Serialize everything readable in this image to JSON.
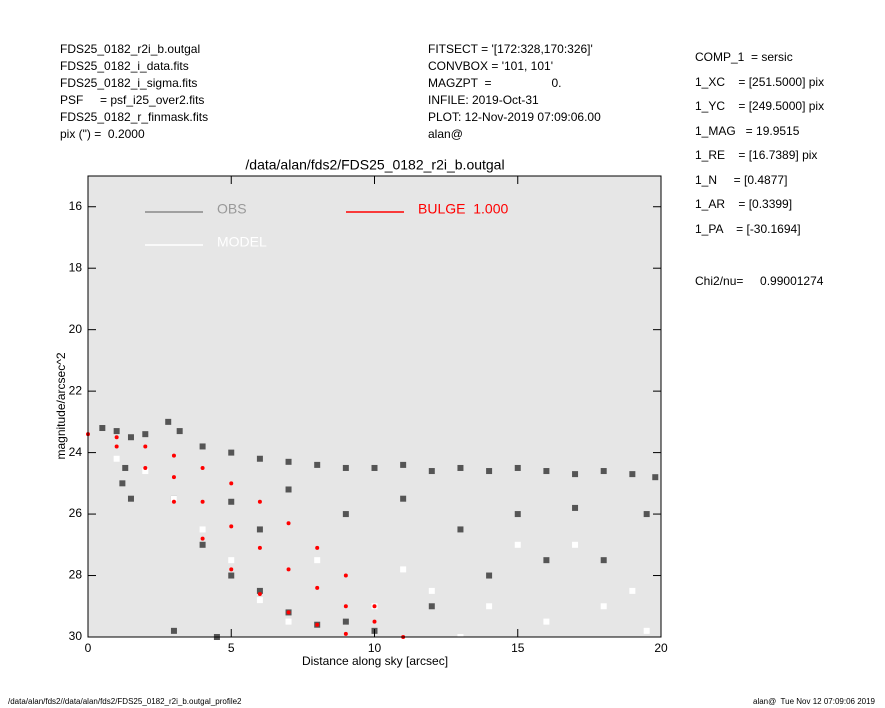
{
  "header": {
    "left": [
      "FDS25_0182_r2i_b.outgal",
      "FDS25_0182_i_data.fits",
      "FDS25_0182_i_sigma.fits",
      "PSF     = psf_i25_over2.fits",
      "FDS25_0182_r_finmask.fits",
      "pix (\") =  0.2000"
    ],
    "middle": [
      "FITSECT = '[172:328,170:326]'",
      "CONVBOX = '101, 101'",
      "MAGZPT  =                  0.",
      "INFILE: 2019-Oct-31",
      "PLOT: 12-Nov-2019 07:09:06.00",
      "alan@"
    ],
    "right": [
      "COMP_1  = sersic",
      "1_XC    = [251.5000] pix",
      "1_YC    = [249.5000] pix",
      "1_MAG   = 19.9515",
      "1_RE    = [16.7389] pix",
      "1_N     = [0.4877]",
      "1_AR    = [0.3399]",
      "1_PA    = [-30.1694]"
    ],
    "chi": "Chi2/nu=     0.99001274"
  },
  "footer": {
    "left": "/data/alan/fds2//data/alan/fds2/FDS25_0182_r2i_b.outgal_profile2",
    "right": "alan@  Tue Nov 12 07:09:06 2019"
  },
  "chart_data": {
    "type": "scatter",
    "title": "/data/alan/fds2/FDS25_0182_r2i_b.outgal",
    "x_label": "Distance along sky [arcsec]",
    "y_label": "magnitude/arcsec^2",
    "xlim": [
      0,
      20
    ],
    "xticks": [
      0,
      5,
      10,
      15,
      20
    ],
    "ylim": [
      30,
      15
    ],
    "yticks": [
      16,
      18,
      20,
      22,
      24,
      26,
      28,
      30
    ],
    "grid": false,
    "series": [
      {
        "name": "OBS",
        "color": "#555555",
        "x": [
          0.5,
          1,
          1.5,
          2,
          2.8,
          3.2,
          4,
          5,
          6,
          7,
          8,
          9,
          10,
          11,
          12,
          13,
          14,
          15,
          16,
          17,
          18,
          19,
          19.8,
          1.2,
          1.5,
          1.3,
          3,
          4,
          5,
          6,
          7,
          8,
          9,
          10,
          12,
          14,
          16,
          18,
          19.5,
          13,
          15,
          17,
          11,
          9,
          7,
          6,
          5,
          3,
          4.5
        ],
        "values": [
          23.2,
          23.3,
          23.5,
          23.4,
          23.0,
          23.3,
          23.8,
          24.0,
          24.2,
          24.3,
          24.4,
          24.5,
          24.5,
          24.4,
          24.6,
          24.5,
          24.6,
          24.5,
          24.6,
          24.7,
          24.6,
          24.7,
          24.8,
          25.0,
          25.5,
          24.5,
          25.5,
          27.0,
          28.0,
          28.5,
          29.2,
          29.6,
          29.5,
          29.8,
          29.0,
          28.0,
          27.5,
          27.5,
          26.0,
          26.5,
          26.0,
          25.8,
          25.5,
          26.0,
          25.2,
          26.5,
          25.6,
          29.8,
          30.0
        ]
      },
      {
        "name": "MODEL",
        "color": "#ffffff",
        "x": [
          1,
          2,
          3,
          4,
          5,
          6,
          7,
          10,
          12,
          14,
          15,
          16,
          18,
          19,
          19.5,
          13,
          17,
          8,
          11
        ],
        "values": [
          24.2,
          24.6,
          25.5,
          26.5,
          27.5,
          28.8,
          29.5,
          29.0,
          28.5,
          29.0,
          27.0,
          29.5,
          29.0,
          28.5,
          29.8,
          30.0,
          27.0,
          27.5,
          27.8
        ]
      },
      {
        "name": "BULGE  1.000",
        "color": "#ff0000",
        "x": [
          0,
          1,
          2,
          3,
          4,
          5,
          6,
          7,
          8,
          9,
          10,
          11,
          1,
          2,
          3,
          4,
          5,
          6,
          7,
          8,
          9,
          3,
          4,
          5,
          6,
          7,
          8,
          9,
          10
        ],
        "values": [
          23.4,
          23.5,
          23.8,
          24.1,
          24.5,
          25.0,
          25.6,
          26.3,
          27.1,
          28.0,
          29.0,
          30.0,
          23.8,
          24.5,
          25.6,
          26.8,
          27.8,
          28.6,
          29.2,
          29.6,
          29.9,
          24.8,
          25.6,
          26.4,
          27.1,
          27.8,
          28.4,
          29.0,
          29.5
        ]
      }
    ]
  }
}
